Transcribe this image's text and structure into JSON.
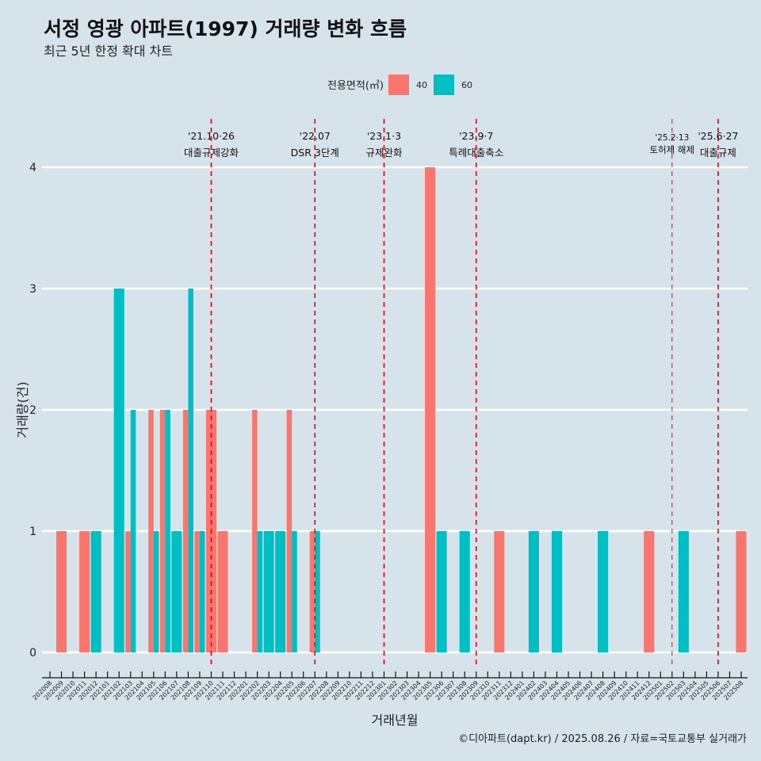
{
  "header": {
    "title": "서정 영광 아파트(1997) 거래량 변화 흐름",
    "subtitle": "최근 5년 한정 확대 차트"
  },
  "caption": "©디아파트(dapt.kr) / 2025.08.26 / 자료=국토교통부 실거래가",
  "chart_data": {
    "type": "bar",
    "title": "서정 영광 아파트(1997) 거래량 변화 흐름",
    "subtitle": "최근 5년 한정 확대 차트",
    "xlabel": "거래년월",
    "ylabel": "거래량(건)",
    "ylim": [
      0,
      4
    ],
    "yticks": [
      0,
      1,
      2,
      3,
      4
    ],
    "grid": true,
    "legend": {
      "title": "전용면적(㎡)",
      "position": "top"
    },
    "categories": [
      "202008",
      "202009",
      "202010",
      "202011",
      "202012",
      "202101",
      "202102",
      "202103",
      "202104",
      "202105",
      "202106",
      "202107",
      "202108",
      "202109",
      "202110",
      "202111",
      "202112",
      "202201",
      "202202",
      "202203",
      "202204",
      "202205",
      "202206",
      "202207",
      "202208",
      "202209",
      "202210",
      "202211",
      "202212",
      "202301",
      "202302",
      "202303",
      "202304",
      "202305",
      "202306",
      "202307",
      "202308",
      "202309",
      "202310",
      "202311",
      "202312",
      "202401",
      "202402",
      "202403",
      "202404",
      "202405",
      "202406",
      "202407",
      "202408",
      "202409",
      "202410",
      "202411",
      "202412",
      "202501",
      "202502",
      "202503",
      "202504",
      "202505",
      "202506",
      "202507",
      "202508"
    ],
    "series": [
      {
        "name": "40",
        "color": "#F8766D",
        "values": [
          0,
          1,
          0,
          1,
          0,
          0,
          0,
          1,
          0,
          2,
          2,
          0,
          2,
          1,
          2,
          1,
          0,
          0,
          2,
          0,
          0,
          2,
          0,
          1,
          0,
          0,
          0,
          0,
          0,
          0,
          0,
          0,
          0,
          4,
          0,
          0,
          0,
          0,
          0,
          1,
          0,
          0,
          0,
          0,
          0,
          0,
          0,
          0,
          0,
          0,
          0,
          0,
          1,
          0,
          0,
          0,
          0,
          0,
          0,
          0,
          1
        ]
      },
      {
        "name": "60",
        "color": "#00BFC4",
        "values": [
          0,
          0,
          0,
          0,
          1,
          0,
          3,
          2,
          0,
          1,
          2,
          1,
          3,
          1,
          0,
          0,
          0,
          0,
          1,
          1,
          1,
          1,
          0,
          1,
          0,
          0,
          0,
          0,
          0,
          0,
          0,
          0,
          0,
          0,
          1,
          0,
          1,
          0,
          0,
          0,
          0,
          0,
          1,
          0,
          1,
          0,
          0,
          0,
          1,
          0,
          0,
          0,
          0,
          0,
          0,
          1,
          0,
          0,
          0,
          0,
          0
        ]
      }
    ],
    "annotations": [
      {
        "x": "202110",
        "date": "'21.10·26",
        "label": "대출규제강화",
        "style": "major"
      },
      {
        "x": "202207",
        "date": "'22.07",
        "label": "DSR 3단계",
        "style": "major"
      },
      {
        "x": "202301",
        "date": "'23.1·3",
        "label": "규제완화",
        "style": "major"
      },
      {
        "x": "202309",
        "date": "'23.9·7",
        "label": "특례대출축소",
        "style": "major"
      },
      {
        "x": "202502",
        "date": "'25.2·13",
        "label": "토허제 해제",
        "style": "minor"
      },
      {
        "x": "202506",
        "date": "'25.6·27",
        "label": "대출규제",
        "style": "major"
      }
    ],
    "annotation_color": "#E8000B"
  }
}
